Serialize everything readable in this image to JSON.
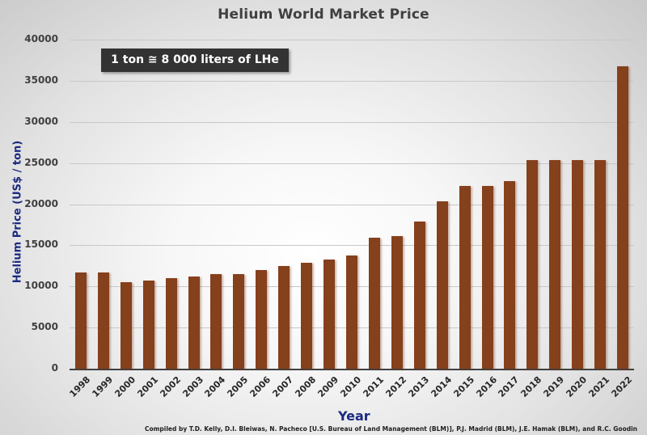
{
  "chart_data": {
    "type": "bar",
    "title": "Helium World Market Price",
    "xlabel": "Year",
    "ylabel": "Helium Price  (US$ / ton)",
    "ylim": [
      0,
      40000
    ],
    "yticks": [
      0,
      5000,
      10000,
      15000,
      20000,
      25000,
      30000,
      35000,
      40000
    ],
    "grid": true,
    "legend": null,
    "bar_color": "#85401c",
    "categories": [
      "1998",
      "1999",
      "2000",
      "2001",
      "2002",
      "2003",
      "2004",
      "2005",
      "2006",
      "2007",
      "2008",
      "2009",
      "2010",
      "2011",
      "2012",
      "2013",
      "2014",
      "2015",
      "2016",
      "2017",
      "2018",
      "2019",
      "2020",
      "2021",
      "2022"
    ],
    "values": [
      11700,
      11700,
      10500,
      10700,
      11000,
      11200,
      11500,
      11500,
      12000,
      12500,
      12900,
      13300,
      13800,
      15900,
      16100,
      17900,
      20300,
      22200,
      22200,
      22800,
      25400,
      25400,
      25400,
      25400,
      36800
    ],
    "annotations": [
      "1 ton ≅ 8 000 liters of LHe",
      "Compiled by T.D. Kelly,  D.I. Bleiwas, N. Pacheco [U.S. Bureau of Land Management (BLM)], P.J. Madrid (BLM), J.E. Hamak (BLM), and R.C. Goodin"
    ]
  },
  "labels": {
    "title": "Helium World Market Price",
    "xlabel": "Year",
    "ylabel": "Helium Price  (US$ / ton)",
    "note": "1 ton ≅ 8 000 liters of LHe",
    "credit": "Compiled by T.D. Kelly,  D.I. Bleiwas, N. Pacheco [U.S. Bureau of Land Management (BLM)], P.J. Madrid (BLM), J.E. Hamak (BLM), and R.C. Goodin"
  }
}
